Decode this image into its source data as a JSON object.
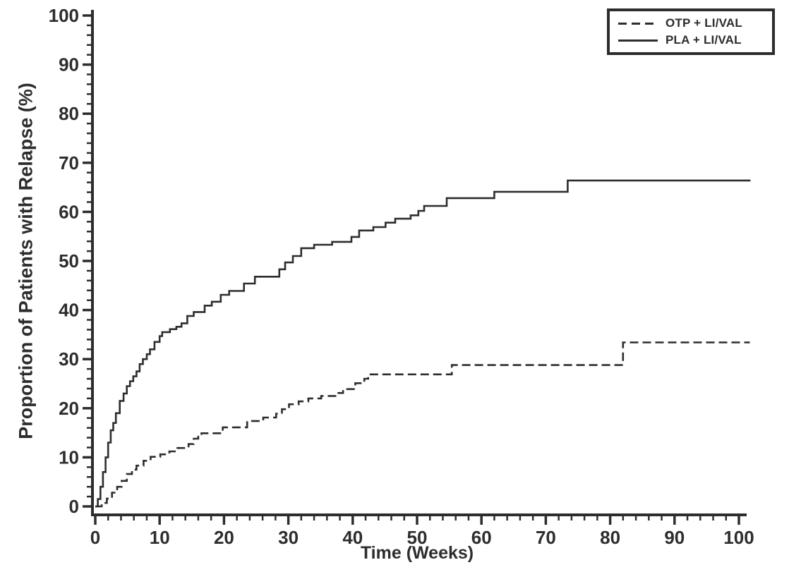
{
  "chart_data": {
    "type": "line",
    "subtype": "step-after-kaplan-meier",
    "title": "",
    "xlabel": "Time (Weeks)",
    "ylabel": "Proportion of Patients with Relapse (%)",
    "xlim": [
      0,
      102
    ],
    "ylim": [
      0,
      100
    ],
    "x_major_ticks": [
      0,
      10,
      20,
      30,
      40,
      50,
      60,
      70,
      80,
      90,
      100
    ],
    "x_minor_step": 2,
    "y_major_ticks": [
      0,
      10,
      20,
      30,
      40,
      50,
      60,
      70,
      80,
      90,
      100
    ],
    "y_minor_step": 2,
    "grid": "off",
    "legend_position": "top-right",
    "line_color": "#2d2d2d",
    "series": [
      {
        "name": "OTP + LI/VAL",
        "style": "dashed",
        "points": [
          [
            0,
            0
          ],
          [
            1,
            0.7
          ],
          [
            1.8,
            1.6
          ],
          [
            2.6,
            2.8
          ],
          [
            3.4,
            4
          ],
          [
            4.1,
            5.2
          ],
          [
            4.9,
            6.6
          ],
          [
            5.7,
            7.5
          ],
          [
            6.4,
            8.3
          ],
          [
            7.5,
            9.3
          ],
          [
            8.6,
            10.1
          ],
          [
            10.1,
            10.6
          ],
          [
            11.5,
            11.2
          ],
          [
            12.6,
            11.9
          ],
          [
            14.5,
            12.7
          ],
          [
            15.3,
            13.8
          ],
          [
            16,
            14.4
          ],
          [
            16.5,
            14.9
          ],
          [
            19.8,
            16.1
          ],
          [
            23.6,
            17.4
          ],
          [
            26.1,
            18.1
          ],
          [
            28.1,
            18.9
          ],
          [
            29,
            19.8
          ],
          [
            30.1,
            20.8
          ],
          [
            31.6,
            21.4
          ],
          [
            33.1,
            22
          ],
          [
            35.1,
            22.5
          ],
          [
            37.3,
            23.1
          ],
          [
            38.5,
            23.9
          ],
          [
            40.4,
            25.1
          ],
          [
            41.8,
            26
          ],
          [
            42.4,
            26.9
          ],
          [
            55.4,
            28.8
          ],
          [
            82,
            33.4
          ],
          [
            101.7,
            33.4
          ]
        ]
      },
      {
        "name": "PLA + LI/VAL",
        "style": "solid",
        "points": [
          [
            0,
            0
          ],
          [
            0.4,
            1.5
          ],
          [
            0.8,
            4
          ],
          [
            1.2,
            7
          ],
          [
            1.6,
            10
          ],
          [
            2,
            13
          ],
          [
            2.4,
            15.5
          ],
          [
            2.8,
            17
          ],
          [
            3.2,
            19
          ],
          [
            3.8,
            21.5
          ],
          [
            4.4,
            23
          ],
          [
            4.9,
            24.5
          ],
          [
            5.4,
            25.5
          ],
          [
            5.9,
            26.5
          ],
          [
            6.4,
            27.5
          ],
          [
            6.9,
            29
          ],
          [
            7.4,
            30
          ],
          [
            8,
            31
          ],
          [
            8.5,
            32
          ],
          [
            9.2,
            33.5
          ],
          [
            10,
            34.7
          ],
          [
            10.4,
            35.5
          ],
          [
            11.6,
            36.1
          ],
          [
            12.6,
            36.6
          ],
          [
            13.4,
            37.3
          ],
          [
            14.3,
            38.8
          ],
          [
            15.3,
            39.6
          ],
          [
            17,
            40.9
          ],
          [
            18.1,
            41.7
          ],
          [
            19.5,
            43.1
          ],
          [
            20.8,
            43.9
          ],
          [
            23.1,
            45.4
          ],
          [
            24.8,
            46.8
          ],
          [
            28.6,
            48.3
          ],
          [
            29.5,
            49.7
          ],
          [
            30.7,
            51
          ],
          [
            32,
            52.6
          ],
          [
            34,
            53.3
          ],
          [
            36.8,
            53.9
          ],
          [
            39.8,
            54.9
          ],
          [
            41,
            56.2
          ],
          [
            43.2,
            56.9
          ],
          [
            45.1,
            57.8
          ],
          [
            46.6,
            58.6
          ],
          [
            49,
            59.3
          ],
          [
            50.2,
            60.2
          ],
          [
            51.1,
            61.2
          ],
          [
            54.6,
            62.8
          ],
          [
            62,
            64.1
          ],
          [
            73.4,
            66.4
          ],
          [
            101.8,
            66.4
          ]
        ]
      }
    ]
  }
}
